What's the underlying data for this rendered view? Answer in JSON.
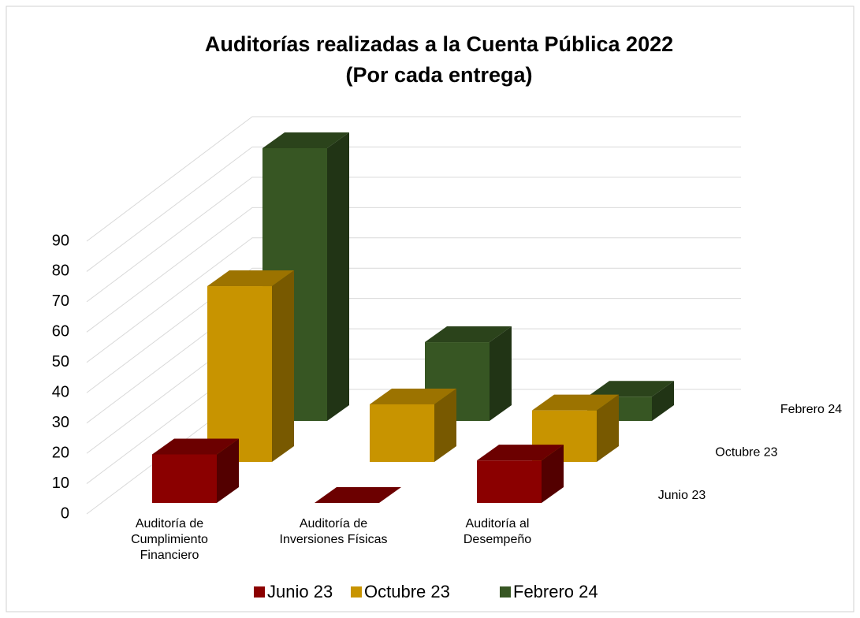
{
  "chart_data": {
    "type": "bar3d",
    "title": "Auditorías realizadas a la Cuenta Pública 2022",
    "subtitle": "(Por cada entrega)",
    "categories": [
      "Auditoría de\nCumplimiento\nFinanciero",
      "Auditoría de\nInversiones Físicas",
      "Auditoría al\nDesempeño"
    ],
    "series": [
      {
        "name": "Junio 23",
        "color": "#8b0000",
        "values": [
          16,
          0,
          14
        ]
      },
      {
        "name": "Octubre 23",
        "color": "#c89400",
        "values": [
          58,
          19,
          17
        ]
      },
      {
        "name": "Febrero 24",
        "color": "#375623",
        "values": [
          90,
          26,
          8
        ]
      }
    ],
    "ylim": [
      0,
      90
    ],
    "yticks": [
      0,
      10,
      20,
      30,
      40,
      50,
      60,
      70,
      80,
      90
    ],
    "grid": true,
    "legend": "bottom"
  }
}
